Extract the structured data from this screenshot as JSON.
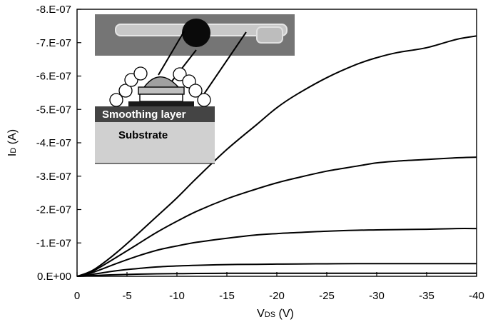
{
  "chart_data": {
    "type": "line",
    "xlabel_main": "V",
    "xlabel_sub": "DS",
    "xlabel_unit": " (V)",
    "ylabel_main": "I",
    "ylabel_sub": "D",
    "ylabel_unit": " (A)",
    "xlim": [
      0,
      -40
    ],
    "ylim": [
      0,
      -8e-07
    ],
    "x_ticks": [
      0,
      -5,
      -10,
      -15,
      -20,
      -25,
      -30,
      -35,
      -40
    ],
    "x_tick_labels": [
      "0",
      "-5",
      "-10",
      "-15",
      "-20",
      "-25",
      "-30",
      "-35",
      "-40"
    ],
    "y_ticks": [
      0,
      -1e-07,
      -2e-07,
      -3e-07,
      -4e-07,
      -5e-07,
      -6e-07,
      -7e-07,
      -8e-07
    ],
    "y_tick_labels": [
      "0.E+00",
      "-1.E-07",
      "-2.E-07",
      "-3.E-07",
      "-4.E-07",
      "-5.E-07",
      "-6.E-07",
      "-7.E-07",
      "-8.E-07"
    ],
    "x": [
      0,
      -1,
      -2,
      -4,
      -6,
      -8,
      -10,
      -12,
      -15,
      -18,
      -20,
      -22,
      -25,
      -28,
      -30,
      -32,
      -35,
      -38,
      -40
    ],
    "grid": false,
    "legend": "none",
    "series": [
      {
        "values": [
          0,
          -1e-08,
          -2.6e-08,
          -7.2e-08,
          -1.25e-07,
          -1.8e-07,
          -2.35e-07,
          -2.95e-07,
          -3.8e-07,
          -4.55e-07,
          -5.05e-07,
          -5.45e-07,
          -5.95e-07,
          -6.35e-07,
          -6.55e-07,
          -6.7e-07,
          -6.85e-07,
          -7.1e-07,
          -7.2e-07
        ]
      },
      {
        "values": [
          0,
          -8e-09,
          -2.2e-08,
          -5.8e-08,
          -9.5e-08,
          -1.32e-07,
          -1.65e-07,
          -1.95e-07,
          -2.32e-07,
          -2.62e-07,
          -2.8e-07,
          -2.95e-07,
          -3.15e-07,
          -3.3e-07,
          -3.4e-07,
          -3.45e-07,
          -3.5e-07,
          -3.55e-07,
          -3.57e-07
        ]
      },
      {
        "values": [
          0,
          -6e-09,
          -1.6e-08,
          -3.9e-08,
          -6e-08,
          -7.8e-08,
          -9.1e-08,
          -1.02e-07,
          -1.14e-07,
          -1.24e-07,
          -1.28e-07,
          -1.31e-07,
          -1.35e-07,
          -1.38e-07,
          -1.39e-07,
          -1.4e-07,
          -1.41e-07,
          -1.43e-07,
          -1.43e-07
        ]
      },
      {
        "values": [
          0,
          -3e-09,
          -8e-09,
          -1.7e-08,
          -2.3e-08,
          -2.8e-08,
          -3.1e-08,
          -3.3e-08,
          -3.5e-08,
          -3.6e-08,
          -3.65e-08,
          -3.7e-08,
          -3.75e-08,
          -3.8e-08,
          -3.8e-08,
          -3.8e-08,
          -3.8e-08,
          -3.8e-08,
          -3.8e-08
        ]
      },
      {
        "values": [
          0,
          -1e-09,
          -2.5e-09,
          -5e-09,
          -6.5e-09,
          -7.5e-09,
          -8e-09,
          -8.5e-09,
          -9e-09,
          -9e-09,
          -9e-09,
          -9e-09,
          -9e-09,
          -9e-09,
          -9e-09,
          -9e-09,
          -9e-09,
          -9e-09,
          -9e-09
        ]
      }
    ]
  },
  "inset": {
    "smoothing_label": "Smoothing layer",
    "substrate_label": "Substrate"
  }
}
